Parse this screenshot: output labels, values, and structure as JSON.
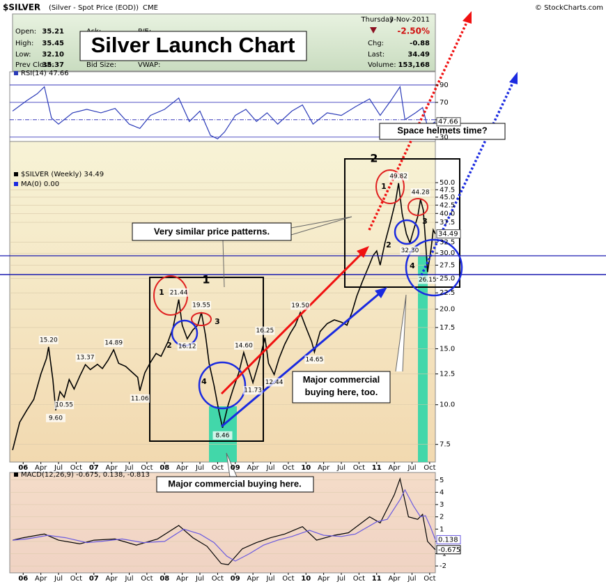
{
  "header": {
    "symbol": "$SILVER",
    "description": "(Silver - Spot Price (EOD))",
    "exchange": "CME",
    "copyright": "© StockCharts.com",
    "day": "Thursday",
    "date": "3-Nov-2011",
    "open_label": "Open:",
    "open": "35.21",
    "high_label": "High:",
    "high": "35.45",
    "low_label": "Low:",
    "low": "32.10",
    "prev_label": "Prev Close:",
    "prev": "35.37",
    "ask_label": "Ask:",
    "bid_label": "Bid Size:",
    "pe_label": "P/E:",
    "vwap_label": "VWAP:",
    "change_pct": "-2.50%",
    "chg_label": "Chg:",
    "chg": "-0.88",
    "last_label": "Last:",
    "last": "34.49",
    "volume_label": "Volume:",
    "volume": "153,168",
    "headline": "Silver Launch Chart"
  },
  "chart_data": [
    {
      "type": "line",
      "title": "RSI(14) 47.66",
      "value_tag": "47.66",
      "series": [
        {
          "color": "#2a3ab8",
          "x": [
            2005.85,
            2006.05,
            2006.2,
            2006.3,
            2006.4,
            2006.5,
            2006.7,
            2006.9,
            2007.1,
            2007.3,
            2007.5,
            2007.65,
            2007.8,
            2008.0,
            2008.2,
            2008.35,
            2008.5,
            2008.65,
            2008.75,
            2008.85,
            2009.0,
            2009.15,
            2009.3,
            2009.45,
            2009.6,
            2009.8,
            2009.95,
            2010.1,
            2010.3,
            2010.5,
            2010.7,
            2010.9,
            2011.05,
            2011.2,
            2011.33,
            2011.4,
            2011.55,
            2011.65,
            2011.72,
            2011.83
          ],
          "values": [
            60,
            72,
            80,
            88,
            52,
            45,
            58,
            62,
            58,
            63,
            45,
            40,
            55,
            62,
            75,
            48,
            60,
            32,
            28,
            36,
            55,
            62,
            48,
            58,
            45,
            60,
            67,
            45,
            58,
            55,
            65,
            74,
            55,
            72,
            88,
            50,
            58,
            64,
            42,
            47.66
          ]
        }
      ],
      "xlim": [
        2005.81,
        2011.83
      ],
      "ylim": [
        25,
        102
      ],
      "yticks": [
        90,
        70,
        50,
        30
      ]
    },
    {
      "type": "line",
      "title": "$SILVER (Weekly) 34.49",
      "indicator": "MA(0) 0.00",
      "value_tag": "34.49",
      "log_scale": true,
      "series": [
        {
          "color": "#000000",
          "x": [
            2005.85,
            2005.95,
            2006.05,
            2006.15,
            2006.25,
            2006.33,
            2006.36,
            2006.42,
            2006.46,
            2006.52,
            2006.58,
            2006.65,
            2006.72,
            2006.8,
            2006.88,
            2006.95,
            2007.05,
            2007.12,
            2007.2,
            2007.28,
            2007.35,
            2007.45,
            2007.55,
            2007.62,
            2007.65,
            2007.72,
            2007.8,
            2007.88,
            2007.95,
            2008.05,
            2008.12,
            2008.2,
            2008.25,
            2008.32,
            2008.4,
            2008.47,
            2008.52,
            2008.58,
            2008.63,
            2008.7,
            2008.77,
            2008.82,
            2008.9,
            2008.97,
            2009.05,
            2009.12,
            2009.18,
            2009.25,
            2009.33,
            2009.42,
            2009.47,
            2009.55,
            2009.62,
            2009.7,
            2009.78,
            2009.85,
            2009.92,
            2010.0,
            2010.08,
            2010.12,
            2010.2,
            2010.3,
            2010.4,
            2010.5,
            2010.58,
            2010.65,
            2010.72,
            2010.8,
            2010.88,
            2010.95,
            2011.0,
            2011.05,
            2011.12,
            2011.2,
            2011.27,
            2011.31,
            2011.36,
            2011.42,
            2011.47,
            2011.53,
            2011.58,
            2011.62,
            2011.66,
            2011.69,
            2011.72,
            2011.77,
            2011.8,
            2011.83
          ],
          "values": [
            7.2,
            8.8,
            9.6,
            10.4,
            12.5,
            14.0,
            15.2,
            12.0,
            9.6,
            11.0,
            10.55,
            12.0,
            11.2,
            12.3,
            13.37,
            12.9,
            13.4,
            13.0,
            13.8,
            14.89,
            13.5,
            13.2,
            12.6,
            12.2,
            11.06,
            12.6,
            13.6,
            14.5,
            14.2,
            15.8,
            17.5,
            21.44,
            17.8,
            16.12,
            17.2,
            17.8,
            19.55,
            16.5,
            13.5,
            11.5,
            9.5,
            8.46,
            10.0,
            11.2,
            12.6,
            14.6,
            13.2,
            11.73,
            13.5,
            16.25,
            13.5,
            12.44,
            14.0,
            15.5,
            16.8,
            17.8,
            19.5,
            17.5,
            15.8,
            14.65,
            17.0,
            18.0,
            18.5,
            18.2,
            17.8,
            19.5,
            22.0,
            24.5,
            27.0,
            29.5,
            30.5,
            27.5,
            32.5,
            38.0,
            44.0,
            49.82,
            40.0,
            34.5,
            32.3,
            36.0,
            39.0,
            44.28,
            41.0,
            33.0,
            26.15,
            31.0,
            35.5,
            34.49
          ],
          "value_labels": [
            null,
            null,
            null,
            null,
            null,
            null,
            "15.20",
            null,
            "9.60",
            null,
            "10.55",
            null,
            null,
            null,
            "13.37",
            null,
            null,
            null,
            null,
            "14.89",
            null,
            null,
            null,
            null,
            "11.06",
            null,
            null,
            null,
            null,
            null,
            null,
            "21.44",
            null,
            "16.12",
            null,
            null,
            "19.55",
            null,
            null,
            null,
            null,
            "8.46",
            null,
            null,
            null,
            "14.60",
            null,
            "11.73",
            null,
            "16.25",
            null,
            "12.44",
            null,
            null,
            null,
            null,
            "19.50",
            null,
            null,
            "14.65",
            null,
            null,
            null,
            null,
            null,
            null,
            null,
            null,
            null,
            null,
            null,
            null,
            null,
            null,
            null,
            "49.82",
            null,
            null,
            "32.30",
            null,
            null,
            "44.28",
            null,
            null,
            "26.15",
            null,
            null,
            null
          ]
        }
      ],
      "xlim": [
        2005.81,
        2011.83
      ],
      "ylim": [
        6.6,
        67.4
      ],
      "yticks": [
        7.5,
        {
          "value": 10,
          "label": "10.0"
        },
        12.5,
        {
          "value": 15,
          "label": "15.0"
        },
        17.5,
        {
          "value": 20,
          "label": "20.0"
        },
        22.5,
        {
          "value": 25,
          "label": "25.0"
        },
        27.5,
        {
          "value": 30,
          "label": "30.0"
        },
        32.5,
        37.5,
        {
          "value": 40,
          "label": "40.0"
        },
        42.5,
        {
          "value": 45,
          "label": "45.0"
        },
        47.5,
        {
          "value": 50,
          "label": "50.0"
        }
      ],
      "xticks": [
        {
          "value": 2006,
          "label": "06"
        },
        {
          "value": 2006.25,
          "label": "Apr"
        },
        {
          "value": 2006.5,
          "label": "Jul"
        },
        {
          "value": 2006.75,
          "label": "Oct"
        },
        {
          "value": 2007,
          "label": "07"
        },
        {
          "value": 2007.25,
          "label": "Apr"
        },
        {
          "value": 2007.5,
          "label": "Jul"
        },
        {
          "value": 2007.75,
          "label": "Oct"
        },
        {
          "value": 2008,
          "label": "08"
        },
        {
          "value": 2008.25,
          "label": "Apr"
        },
        {
          "value": 2008.5,
          "label": "Jul"
        },
        {
          "value": 2008.75,
          "label": "Oct"
        },
        {
          "value": 2009,
          "label": "09"
        },
        {
          "value": 2009.25,
          "label": "Apr"
        },
        {
          "value": 2009.5,
          "label": "Jul"
        },
        {
          "value": 2009.75,
          "label": "Oct"
        },
        {
          "value": 2010,
          "label": "10"
        },
        {
          "value": 2010.25,
          "label": "Apr"
        },
        {
          "value": 2010.5,
          "label": "Jul"
        },
        {
          "value": 2010.75,
          "label": "Oct"
        },
        {
          "value": 2011,
          "label": "11"
        },
        {
          "value": 2011.25,
          "label": "Apr"
        },
        {
          "value": 2011.5,
          "label": "Jul"
        },
        {
          "value": 2011.75,
          "label": "Oct"
        }
      ],
      "annotations": [
        "Very similar price patterns.",
        "Space helmets time?",
        "Major commercial buying here, too.",
        "Major commercial buying here.",
        "1",
        "2",
        "1",
        "2",
        "3",
        "4",
        "1",
        "2",
        "3",
        "4"
      ]
    },
    {
      "type": "line",
      "title": "MACD(12,26,9) -0.675, 0.138, -0.813",
      "value_tags": [
        "0.138",
        "-0.675"
      ],
      "series": [
        {
          "color": "#000000",
          "x": [
            2005.85,
            2006.0,
            2006.3,
            2006.5,
            2006.8,
            2007.0,
            2007.3,
            2007.6,
            2007.9,
            2008.2,
            2008.4,
            2008.6,
            2008.8,
            2008.9,
            2009.1,
            2009.3,
            2009.5,
            2009.7,
            2009.95,
            2010.15,
            2010.4,
            2010.6,
            2010.9,
            2011.05,
            2011.25,
            2011.33,
            2011.45,
            2011.58,
            2011.65,
            2011.72,
            2011.83
          ],
          "values": [
            0.1,
            0.3,
            0.6,
            0.1,
            -0.2,
            0.1,
            0.2,
            -0.3,
            0.2,
            1.3,
            0.3,
            -0.4,
            -1.8,
            -1.9,
            -0.6,
            -0.1,
            0.3,
            0.6,
            1.2,
            0.1,
            0.5,
            0.7,
            2.0,
            1.5,
            3.8,
            5.1,
            2.0,
            1.8,
            2.2,
            0.0,
            -0.675
          ]
        },
        {
          "color": "#6a5ae0",
          "x": [
            2005.85,
            2006.05,
            2006.35,
            2006.6,
            2006.9,
            2007.1,
            2007.4,
            2007.7,
            2008.0,
            2008.27,
            2008.5,
            2008.7,
            2008.88,
            2009.0,
            2009.2,
            2009.4,
            2009.6,
            2009.8,
            2010.05,
            2010.25,
            2010.5,
            2010.7,
            2011.0,
            2011.15,
            2011.33,
            2011.4,
            2011.52,
            2011.62,
            2011.69,
            2011.76,
            2011.83
          ],
          "values": [
            0.1,
            0.2,
            0.5,
            0.3,
            -0.1,
            0.0,
            0.2,
            -0.1,
            0.0,
            1.0,
            0.6,
            -0.1,
            -1.2,
            -1.6,
            -1.0,
            -0.3,
            0.1,
            0.4,
            0.9,
            0.5,
            0.4,
            0.6,
            1.6,
            1.8,
            3.4,
            4.2,
            2.9,
            2.0,
            2.1,
            1.2,
            0.138
          ]
        }
      ],
      "xlim": [
        2005.81,
        2011.83
      ],
      "ylim": [
        -2.56,
        5.61
      ],
      "yticks": [
        5,
        4,
        3,
        2,
        1,
        0,
        -1,
        -2
      ]
    }
  ]
}
